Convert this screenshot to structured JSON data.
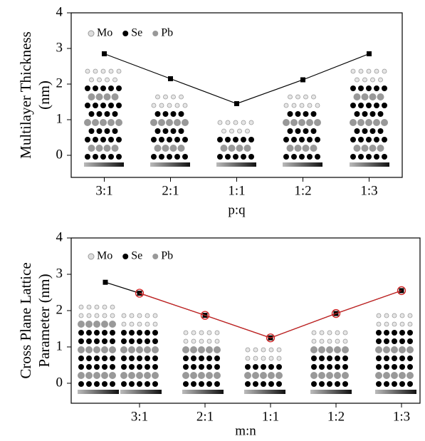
{
  "chart_data": [
    {
      "type": "line",
      "ylabel": [
        "Multilayer Thickness",
        "(nm)"
      ],
      "xlabel": "p:q",
      "categories": [
        "3:1",
        "2:1",
        "1:1",
        "1:2",
        "1:3"
      ],
      "series": [
        {
          "color": "#000000",
          "marker": "square",
          "values": [
            2.85,
            2.15,
            1.45,
            2.12,
            2.85
          ]
        }
      ],
      "ylim": [
        -0.62,
        4
      ],
      "yticks": [
        0,
        1,
        2,
        3,
        4
      ],
      "legend": [
        {
          "label": "Mo",
          "color": "#dddddd"
        },
        {
          "label": "Se",
          "color": "#000000"
        },
        {
          "label": "Pb",
          "color": "#999999"
        }
      ]
    },
    {
      "type": "line",
      "ylabel": [
        "Cross Plane Lattice",
        "Parameter (nm)"
      ],
      "xlabel": "m:n",
      "categories": [
        null,
        "3:1",
        "2:1",
        "1:1",
        "1:2",
        "1:3"
      ],
      "series": [
        {
          "color": "#000000",
          "marker": "square",
          "values": [
            2.78,
            2.48,
            1.87,
            1.25,
            1.92,
            2.55
          ]
        },
        {
          "color": "#d02020",
          "marker": "circle-open",
          "values": [
            null,
            2.48,
            1.87,
            1.25,
            1.92,
            2.55
          ]
        }
      ],
      "ylim": [
        -0.55,
        4
      ],
      "yticks": [
        0,
        1,
        2,
        3,
        4
      ],
      "legend": [
        {
          "label": "Mo",
          "color": "#dddddd"
        },
        {
          "label": "Se",
          "color": "#000000"
        },
        {
          "label": "Pb",
          "color": "#999999"
        }
      ]
    }
  ]
}
